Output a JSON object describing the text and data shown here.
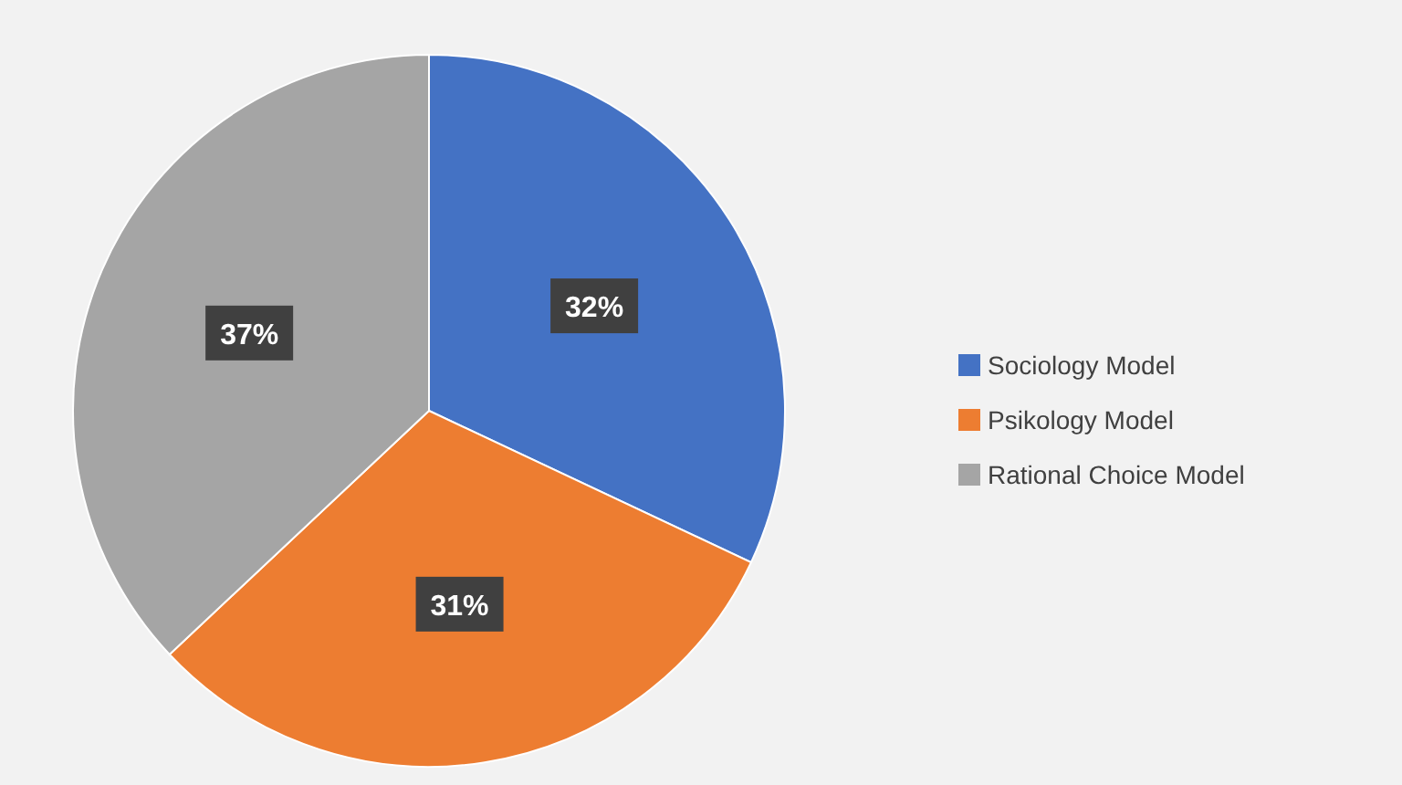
{
  "chart_data": {
    "type": "pie",
    "categories": [
      "Sociology Model",
      "Psikology Model",
      "Rational Choice Model"
    ],
    "values": [
      32,
      31,
      37
    ],
    "colors": [
      "#4472c4",
      "#ed7d31",
      "#a5a5a5"
    ],
    "value_labels": [
      "32%",
      "31%",
      "37%"
    ],
    "legend": "right"
  }
}
